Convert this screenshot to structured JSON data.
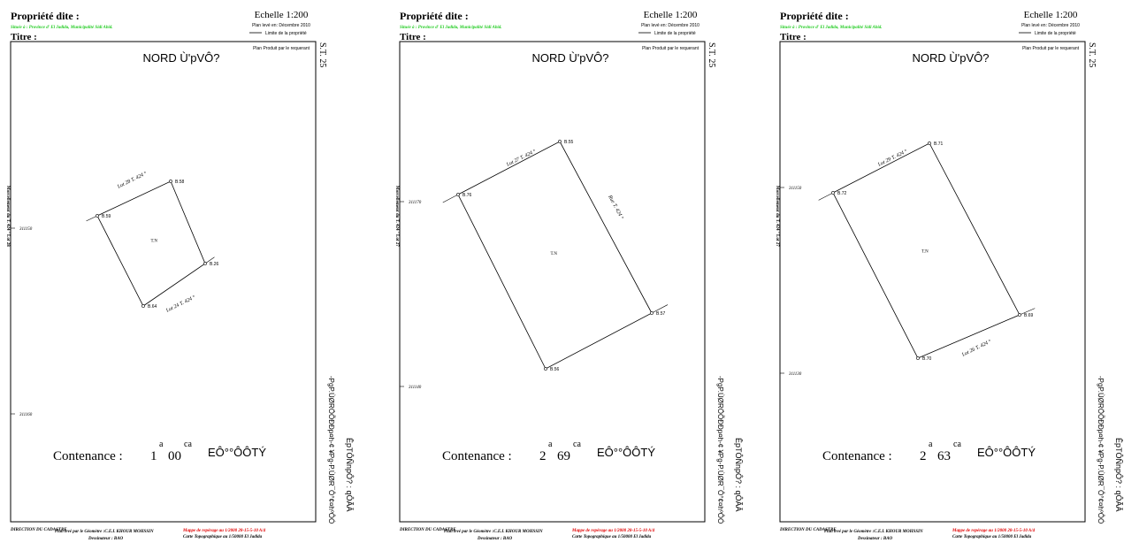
{
  "sheets": [
    {
      "property_label": "Propriété dite :",
      "location": "Située à : Province d' El Jadida, Municipalité Sidi Abid.",
      "title_label": "Titre :",
      "scale": "Echelle 1:200",
      "survey_date": "Plan levé en: Décembre 2010",
      "legend_limit": "Limite de la propriété",
      "produced_by": "Plan Produit par le requerant",
      "north": "NORD Ù'pVÔ?",
      "sheet_ref": "S.T. 25",
      "side_note": "Morcellement du T. 424 ° Lot 28",
      "coords": [
        "311150",
        "311160"
      ],
      "area_label": "Contenance :",
      "area_a": "1",
      "area_a_unit": "a",
      "area_ca": "00",
      "area_ca_unit": "ca",
      "area_words": "EÔ°°ÔÔTÝ",
      "right_note": "-PgP.ÙØRÖÕÐÐp¤h-¢ ¥Pg-P.ÙØR¯Ô°¢¤hºÔÓ",
      "right_code": "ÊpTÔÑnpÔ? : qÔÃÂ",
      "vertices": [
        "B.59",
        "B.58",
        "B.26",
        "B.64"
      ],
      "lots": [
        "Lot 28 T. 424 °",
        "Lot 24 T. 424 °"
      ],
      "center": "T.N",
      "footer_dir": "DIRECTION DU CADASTRE",
      "footer_surveyor": "Plan levé par le Géomètre :C.E.L KHOUR MOHSSIN",
      "footer_drawer": "Dessinateur : BAO",
      "footer_map": "Mappe de repérage au 1/2000 28-15-5-10 A/4",
      "footer_topo": "Carte Topographique au 1/50000 El Jadida"
    },
    {
      "property_label": "Propriété dite :",
      "location": "Située à : Province d' El Jadida, Municipalité Sidi Abid.",
      "title_label": "Titre :",
      "scale": "Echelle 1:200",
      "survey_date": "Plan levé en: Décembre 2010",
      "legend_limit": "Limite de la propriété",
      "produced_by": "Plan Produit par le requerant",
      "north": "NORD Ù'pVÔ?",
      "sheet_ref": "S.T. 25",
      "side_note": "Morcellement du T. 424 ° Lot 27",
      "coords": [
        "311170",
        "311140"
      ],
      "area_label": "Contenance :",
      "area_a": "2",
      "area_a_unit": "a",
      "area_ca": "69",
      "area_ca_unit": "ca",
      "area_words": "EÔ°°ÔÔTÝ",
      "right_note": "-PgP.ÙØRÖÕÐÐp¤h-¢ ¥Pg-P.ÙØR¯Ô°¢¤hºÔÓ",
      "right_code": "ÊpTÔÑnpÔ? : qÔÃÂ",
      "vertices": [
        "B.76",
        "B.55",
        "B.57",
        "B.56"
      ],
      "lots": [
        "Lot 27 T. 424 °",
        "Rue T. 424 °"
      ],
      "center": "T.N",
      "footer_dir": "DIRECTION DU CADASTRE",
      "footer_surveyor": "Plan levé par le Géomètre :C.E.L KHOUR MOHSSIN",
      "footer_drawer": "Dessinateur : BAO",
      "footer_map": "Mappe de repérage au 1/2000 28-15-5-10 A/4",
      "footer_topo": "Carte Topographique au 1/50000 El Jadida"
    },
    {
      "property_label": "Propriété dite :",
      "location": "Située à : Province d' El Jadida, Municipalité Sidi Abid.",
      "title_label": "Titre :",
      "scale": "Echelle 1:200",
      "survey_date": "Plan levé en: Décembre 2010",
      "legend_limit": "Limite de la propriété",
      "produced_by": "Plan Produit par le requerant",
      "north": "NORD Ù'pVÔ?",
      "sheet_ref": "S.T. 25",
      "side_note": "Morcellement du T. 424 ° Lot 27",
      "coords": [
        "311150",
        "311130"
      ],
      "area_label": "Contenance :",
      "area_a": "2",
      "area_a_unit": "a",
      "area_ca": "63",
      "area_ca_unit": "ca",
      "area_words": "EÔ°°ÔÔTÝ",
      "right_note": "-PgP.ÙØRÖÕÐÐp¤h-¢ ¥Pg-P.ÙØR¯Ô°¢¤hºÔÓ",
      "right_code": "ÊpTÔÑnpÔ? : qÔÃÂ",
      "vertices": [
        "B.72",
        "B.71",
        "B.69",
        "B.70"
      ],
      "lots": [
        "Lot 29 T. 424 °",
        "Lot 26 T. 424 °"
      ],
      "center": "T.N",
      "footer_dir": "DIRECTION DU CADASTRE",
      "footer_surveyor": "Plan levé par le Géomètre :C.E.L KHOUR MOHSSIN",
      "footer_drawer": "Dessinateur : BAO",
      "footer_map": "Mappe de repérage au 1/2000 28-15-5-10 A/4",
      "footer_topo": "Carte Topographique au 1/50000 El Jadida"
    }
  ]
}
